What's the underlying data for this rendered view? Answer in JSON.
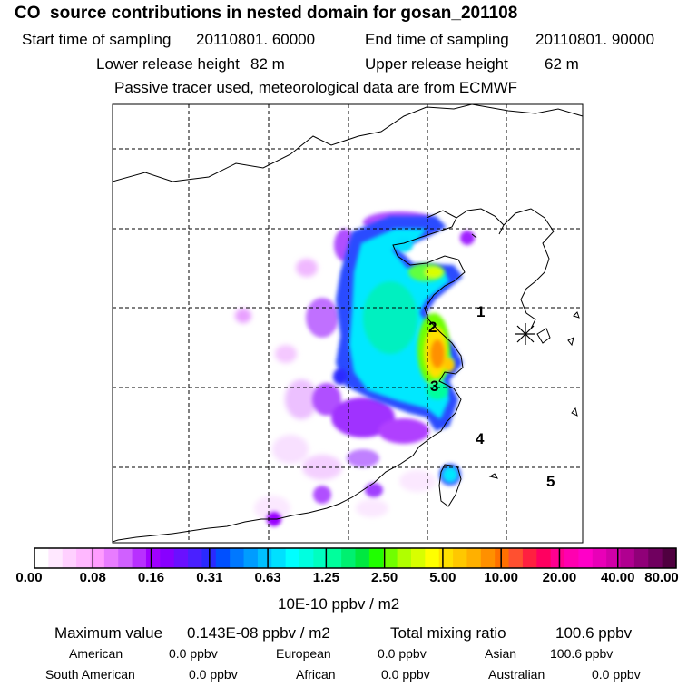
{
  "header": {
    "title": "CO  source contributions in nested domain for gosan_201108",
    "start_label": "Start time of sampling",
    "start_value": "20110801. 60000",
    "end_label": "End time of sampling",
    "end_value": "20110801. 90000",
    "lower_label": "Lower release height",
    "lower_value": "82 m",
    "upper_label": "Upper release height",
    "upper_value": "62 m",
    "note": "Passive tracer used, meteorological data are from ECMWF"
  },
  "map": {
    "region_labels": [
      "1",
      "2",
      "3",
      "4",
      "5"
    ]
  },
  "colorbar": {
    "ticks": [
      "0.00",
      "0.08",
      "0.16",
      "0.31",
      "0.63",
      "1.25",
      "2.50",
      "5.00",
      "10.00",
      "20.00",
      "40.00",
      "80.00"
    ],
    "units": "10E-10 ppbv / m2",
    "colors": [
      "#ffffff",
      "#ffe8ff",
      "#ffd0ff",
      "#ffb8ff",
      "#ff9cff",
      "#e87cff",
      "#d060ff",
      "#b830ff",
      "#a000ff",
      "#8800ff",
      "#6a10ff",
      "#4a20ff",
      "#2a2aff",
      "#0050ff",
      "#0078ff",
      "#009cff",
      "#00c0ff",
      "#00e0ff",
      "#00ffff",
      "#00ffe0",
      "#00ffc0",
      "#00ff9c",
      "#00f070",
      "#00e840",
      "#20ff00",
      "#70ff00",
      "#b0ff00",
      "#d8ff00",
      "#ffff00",
      "#ffe000",
      "#ffc800",
      "#ffb000",
      "#ff9000",
      "#ff7000",
      "#ff5030",
      "#ff2040",
      "#ff0060",
      "#ff0090",
      "#ff00b0",
      "#ff00c8",
      "#e800b8",
      "#d000a8",
      "#b00090",
      "#900078",
      "#70005f",
      "#500040"
    ]
  },
  "footer": {
    "max_label": "Maximum value",
    "max_value": "0.143E-08 ppbv / m2",
    "total_label": "Total mixing ratio",
    "total_value": "100.6 ppbv",
    "american_label": "American",
    "american_value": "0.0 ppbv",
    "european_label": "European",
    "european_value": "0.0 ppbv",
    "asian_label": "Asian",
    "asian_value": "100.6 ppbv",
    "south_american_label": "South American",
    "south_american_value": "0.0 ppbv",
    "african_label": "African",
    "african_value": "0.0 ppbv",
    "australian_label": "Australian",
    "australian_value": "0.0 ppbv"
  }
}
